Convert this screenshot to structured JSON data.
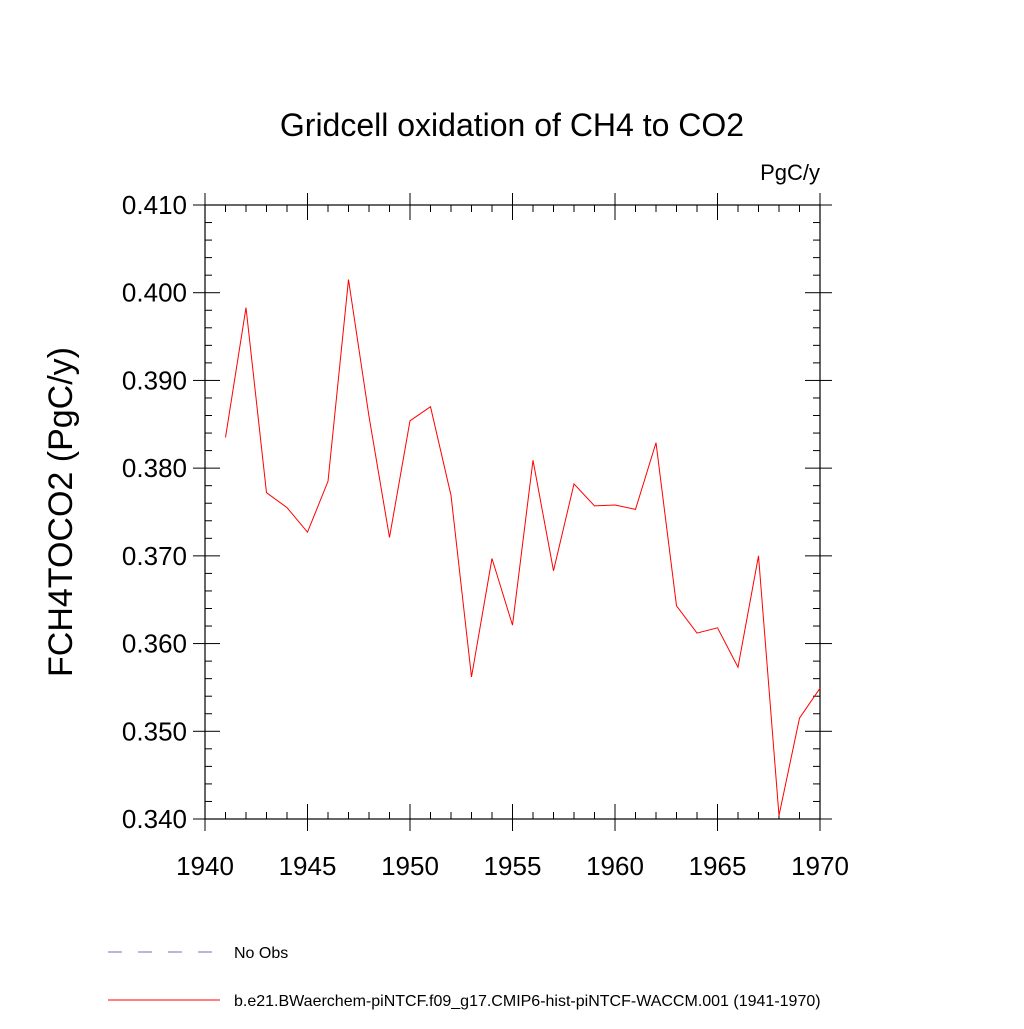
{
  "chart_data": {
    "type": "line",
    "title": "Gridcell oxidation of CH4 to CO2",
    "units": "PgC/y",
    "xlabel": "",
    "ylabel": "FCH4TOCO2  (PgC/y)",
    "xlim": [
      1940,
      1970
    ],
    "ylim": [
      0.34,
      0.41
    ],
    "x_ticks": [
      1940,
      1945,
      1950,
      1955,
      1960,
      1965,
      1970
    ],
    "x_tick_labels": [
      "1940",
      "1945",
      "1950",
      "1955",
      "1960",
      "1965",
      "1970"
    ],
    "y_ticks": [
      0.34,
      0.35,
      0.36,
      0.37,
      0.38,
      0.39,
      0.4,
      0.41
    ],
    "y_tick_labels": [
      "0.340",
      "0.350",
      "0.360",
      "0.370",
      "0.380",
      "0.390",
      "0.400",
      "0.410"
    ],
    "grid": false,
    "legend_position": "bottom",
    "series": [
      {
        "name": "b.e21.BWaerchem-piNTCF.f09_g17.CMIP6-hist-piNTCF-WACCM.001 (1941-1970)",
        "color": "#ff0000",
        "style": "solid",
        "x": [
          1941,
          1942,
          1943,
          1944,
          1945,
          1946,
          1947,
          1948,
          1949,
          1950,
          1951,
          1952,
          1953,
          1954,
          1955,
          1956,
          1957,
          1958,
          1959,
          1960,
          1961,
          1962,
          1963,
          1964,
          1965,
          1966,
          1967,
          1968,
          1969,
          1970
        ],
        "y": [
          0.3835,
          0.3983,
          0.3772,
          0.3755,
          0.3727,
          0.3785,
          0.4015,
          0.3859,
          0.3721,
          0.3854,
          0.387,
          0.3769,
          0.3562,
          0.3697,
          0.3621,
          0.3809,
          0.3683,
          0.3782,
          0.3757,
          0.3758,
          0.3753,
          0.3829,
          0.3643,
          0.3612,
          0.3618,
          0.3573,
          0.37,
          0.3404,
          0.3515,
          0.3549
        ]
      }
    ],
    "legend": [
      {
        "label": "No Obs",
        "color": "#7a6fb0",
        "style": "dashed"
      },
      {
        "label": "b.e21.BWaerchem-piNTCF.f09_g17.CMIP6-hist-piNTCF-WACCM.001 (1941-1970)",
        "color": "#ff0000",
        "style": "solid"
      }
    ]
  }
}
